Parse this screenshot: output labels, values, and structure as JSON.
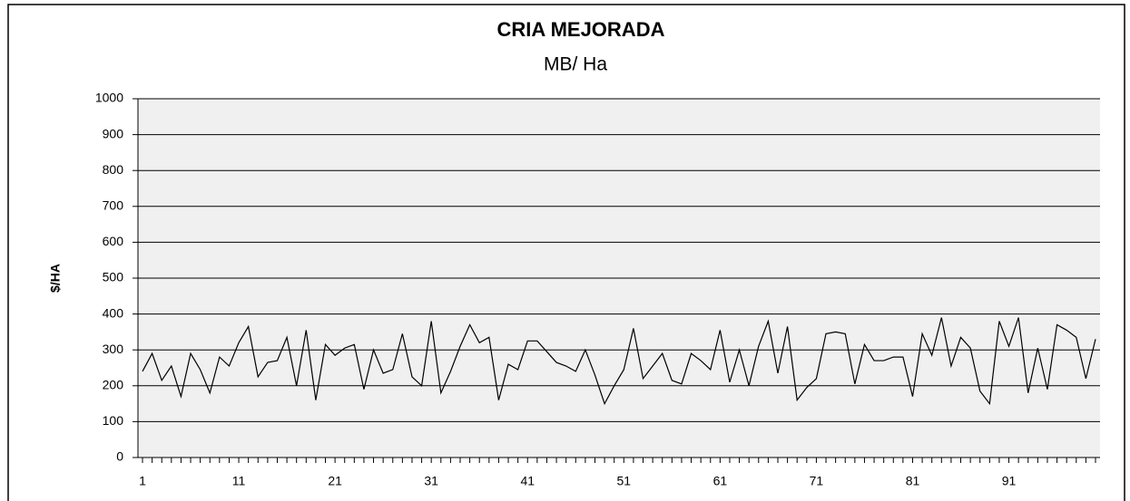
{
  "chart_data": {
    "type": "line",
    "title": "CRIA MEJORADA",
    "subtitle": "MB/ Ha",
    "y_label": "$/HA",
    "categories": [
      "1",
      null,
      null,
      null,
      null,
      null,
      null,
      null,
      null,
      null,
      "11",
      null,
      null,
      null,
      null,
      null,
      null,
      null,
      null,
      null,
      "21",
      null,
      null,
      null,
      null,
      null,
      null,
      null,
      null,
      null,
      "31",
      null,
      null,
      null,
      null,
      null,
      null,
      null,
      null,
      null,
      "41",
      null,
      null,
      null,
      null,
      null,
      null,
      null,
      null,
      null,
      "51",
      null,
      null,
      null,
      null,
      null,
      null,
      null,
      null,
      null,
      "61",
      null,
      null,
      null,
      null,
      null,
      null,
      null,
      null,
      null,
      "71",
      null,
      null,
      null,
      null,
      null,
      null,
      null,
      null,
      null,
      "81",
      null,
      null,
      null,
      null,
      null,
      null,
      null,
      null,
      null,
      "91",
      null,
      null,
      null,
      null,
      null,
      null,
      null,
      null,
      null
    ],
    "values": [
      240,
      290,
      215,
      255,
      170,
      290,
      245,
      180,
      280,
      255,
      320,
      365,
      225,
      265,
      270,
      335,
      200,
      355,
      160,
      315,
      285,
      305,
      315,
      190,
      300,
      235,
      245,
      345,
      225,
      200,
      380,
      180,
      240,
      310,
      370,
      320,
      335,
      160,
      260,
      245,
      325,
      325,
      295,
      265,
      255,
      240,
      300,
      230,
      150,
      200,
      245,
      360,
      220,
      255,
      290,
      215,
      205,
      290,
      270,
      245,
      355,
      210,
      300,
      200,
      310,
      380,
      235,
      365,
      160,
      195,
      220,
      345,
      350,
      345,
      205,
      315,
      270,
      270,
      280,
      280,
      170,
      345,
      285,
      390,
      255,
      335,
      305,
      185,
      150,
      380,
      310,
      390,
      180,
      305,
      190,
      370,
      355,
      335,
      220,
      330
    ],
    "color": "#000000",
    "ylim": [
      0,
      1000
    ],
    "yticks": [
      0,
      100,
      200,
      300,
      400,
      500,
      600,
      700,
      800,
      900,
      1000
    ],
    "grid": true
  }
}
